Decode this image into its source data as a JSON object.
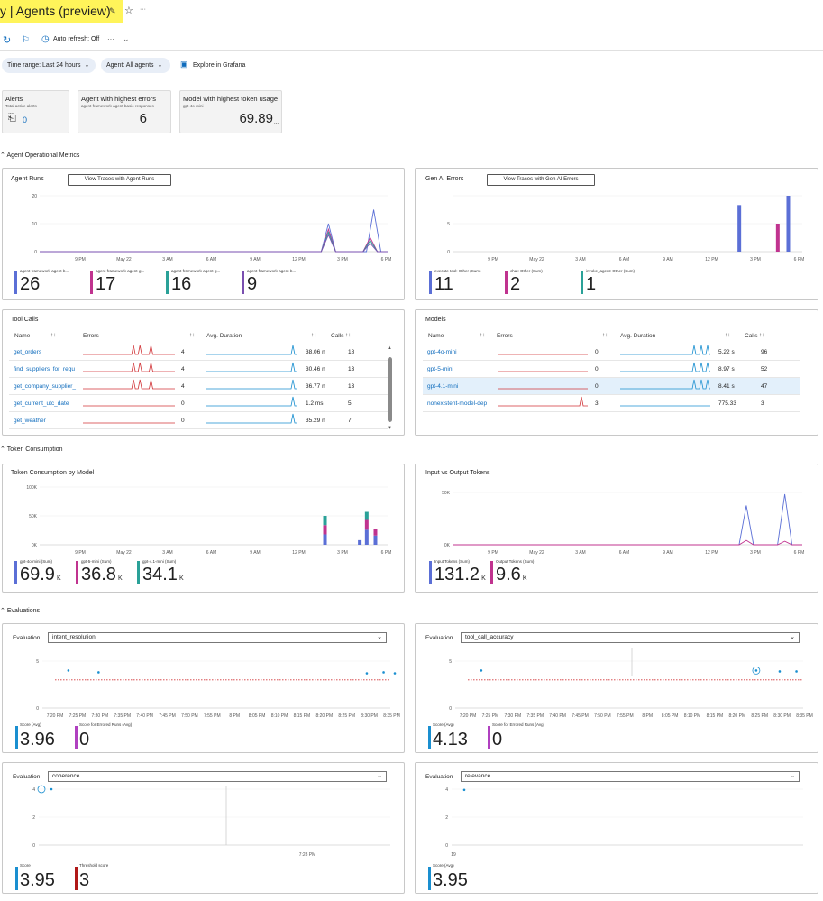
{
  "title": "y | Agents (preview)",
  "toolbar": {
    "auto_refresh": "Auto refresh: Off",
    "more": "···"
  },
  "filters": {
    "time_range": "Time range: Last 24 hours",
    "agent": "Agent: All agents",
    "grafana": "Explore in Grafana"
  },
  "tiles": {
    "alerts": {
      "title": "Alerts",
      "subtitle": "Total active alerts",
      "value": "0"
    },
    "errors": {
      "title": "Agent with highest errors",
      "subtitle": "agent-framework-agent-basic-responses",
      "value": "6"
    },
    "tokens": {
      "title": "Model with highest token usage",
      "subtitle": "gpt-4o-mini",
      "value": "69.89",
      "suffix": "..."
    }
  },
  "sections": {
    "operational": "Agent Operational Metrics",
    "token": "Token Consumption",
    "evaluations": "Evaluations"
  },
  "time_axis": [
    "9 PM",
    "May 22",
    "3 AM",
    "6 AM",
    "9 AM",
    "12 PM",
    "3 PM",
    "6 PM"
  ],
  "agent_runs": {
    "title": "Agent Runs",
    "button": "View Traces with Agent Runs",
    "chart_data": {
      "type": "line",
      "x": [
        "9 PM",
        "May 22",
        "3 AM",
        "6 AM",
        "9 AM",
        "12 PM",
        "3 PM",
        "6 PM"
      ],
      "ylim": [
        0,
        20
      ],
      "yticks": [
        "20",
        "10",
        "0"
      ],
      "series": [
        {
          "name": "agent-framework-agent-b...",
          "color": "#5b6fd6",
          "peaks": [
            [
              0.83,
              10
            ],
            [
              0.96,
              15
            ]
          ]
        },
        {
          "name": "agent-framework-agent-g...",
          "color": "#c0338f",
          "peaks": [
            [
              0.83,
              8
            ],
            [
              0.95,
              5
            ]
          ]
        },
        {
          "name": "agent-framework-agent-g...",
          "color": "#2aa198",
          "peaks": [
            [
              0.83,
              7
            ],
            [
              0.95,
              4
            ]
          ]
        },
        {
          "name": "agent-framework-agent-b...",
          "color": "#7a4fb0",
          "peaks": [
            [
              0.83,
              6
            ],
            [
              0.95,
              3
            ]
          ]
        }
      ]
    },
    "legend": [
      {
        "label": "agent-framework-agent-b...",
        "value": "26",
        "color": "#5b6fd6"
      },
      {
        "label": "agent-framework-agent-g...",
        "value": "17",
        "color": "#c0338f"
      },
      {
        "label": "agent-framework-agent-g...",
        "value": "16",
        "color": "#2aa198"
      },
      {
        "label": "agent-framework-agent-b...",
        "value": "9",
        "color": "#7a4fb0"
      }
    ]
  },
  "gen_ai_errors": {
    "title": "Gen AI Errors",
    "button": "View Traces with Gen AI Errors",
    "chart_data": {
      "type": "bar",
      "x": [
        "9 PM",
        "May 22",
        "3 AM",
        "6 AM",
        "9 AM",
        "12 PM",
        "3 PM",
        "6 PM"
      ],
      "ylim": [
        0,
        6
      ],
      "yticks": [
        "5",
        "0"
      ],
      "bars": [
        {
          "pos": 0.82,
          "value": 5,
          "color": "#5b6fd6"
        },
        {
          "pos": 0.93,
          "value": 3,
          "color": "#c0338f"
        },
        {
          "pos": 0.96,
          "value": 6,
          "color": "#5b6fd6"
        }
      ]
    },
    "legend": [
      {
        "label": "execute tool: Other (Sum)",
        "value": "11",
        "color": "#5b6fd6"
      },
      {
        "label": "chat: Other (Sum)",
        "value": "2",
        "color": "#c0338f"
      },
      {
        "label": "invoke_agent: Other (Sum)",
        "value": "1",
        "color": "#2aa198"
      }
    ]
  },
  "tool_calls": {
    "title": "Tool Calls",
    "headers": {
      "name": "Name",
      "errors": "Errors",
      "duration": "Avg. Duration",
      "calls": "Calls"
    },
    "rows": [
      {
        "name": "get_orders",
        "errors": "4",
        "duration": "38.06 n",
        "calls": "18",
        "err_spikes": true
      },
      {
        "name": "find_suppliers_for_requ",
        "errors": "4",
        "duration": "30.46 n",
        "calls": "13",
        "err_spikes": true
      },
      {
        "name": "get_company_supplier_",
        "errors": "4",
        "duration": "36.77 n",
        "calls": "13",
        "err_spikes": true
      },
      {
        "name": "get_current_utc_date",
        "errors": "0",
        "duration": "1.2 ms",
        "calls": "5",
        "err_spikes": false
      },
      {
        "name": "get_weather",
        "errors": "0",
        "duration": "35.29 n",
        "calls": "7",
        "err_spikes": false
      }
    ]
  },
  "models": {
    "title": "Models",
    "headers": {
      "name": "Name",
      "errors": "Errors",
      "duration": "Avg. Duration",
      "calls": "Calls"
    },
    "rows": [
      {
        "name": "gpt-4o-mini",
        "errors": "0",
        "duration": "5.22 s",
        "calls": "96",
        "err_spike": false
      },
      {
        "name": "gpt-5-mini",
        "errors": "0",
        "duration": "8.97 s",
        "calls": "52",
        "err_spike": false
      },
      {
        "name": "gpt-4.1-mini",
        "errors": "0",
        "duration": "8.41 s",
        "calls": "47",
        "err_spike": false
      },
      {
        "name": "nonexistent-model-dep",
        "errors": "3",
        "duration": "775.33",
        "calls": "3",
        "err_spike": true
      }
    ]
  },
  "token_by_model": {
    "title": "Token Consumption by Model",
    "chart_data": {
      "type": "bar",
      "x": [
        "9 PM",
        "May 22",
        "3 AM",
        "6 AM",
        "9 AM",
        "12 PM",
        "3 PM",
        "6 PM"
      ],
      "ylim": [
        0,
        100000
      ],
      "yticks": [
        "100K",
        "50K",
        "0K"
      ],
      "stacks": [
        {
          "pos": 0.82,
          "values": [
            18000,
            16000,
            16000
          ]
        },
        {
          "pos": 0.92,
          "values": [
            8000,
            0,
            0
          ]
        },
        {
          "pos": 0.94,
          "values": [
            26000,
            17000,
            14000
          ]
        },
        {
          "pos": 0.965,
          "values": [
            16000,
            12000,
            0
          ]
        }
      ],
      "colors": [
        "#5b6fd6",
        "#c0338f",
        "#2aa198"
      ]
    },
    "legend": [
      {
        "label": "gpt-4o-mini (Sum)",
        "value": "69.9",
        "unit": "K",
        "color": "#5b6fd6"
      },
      {
        "label": "gpt-5-mini (Sum)",
        "value": "36.8",
        "unit": "K",
        "color": "#c0338f"
      },
      {
        "label": "gpt-4.1-mini (Sum)",
        "value": "34.1",
        "unit": "K",
        "color": "#2aa198"
      }
    ]
  },
  "io_tokens": {
    "title": "Input vs Output Tokens",
    "chart_data": {
      "type": "line",
      "x": [
        "9 PM",
        "May 22",
        "3 AM",
        "6 AM",
        "9 AM",
        "12 PM",
        "3 PM",
        "6 PM"
      ],
      "ylim": [
        0,
        60000
      ],
      "yticks": [
        "50K",
        "0K"
      ],
      "series": [
        {
          "name": "Input Tokens (Sum)",
          "color": "#5b6fd6",
          "peaks": [
            [
              0.84,
              45000
            ],
            [
              0.95,
              58000
            ]
          ]
        },
        {
          "name": "Output Tokens (Sum)",
          "color": "#c0338f",
          "peaks": [
            [
              0.84,
              5000
            ],
            [
              0.95,
              4000
            ]
          ]
        }
      ]
    },
    "legend": [
      {
        "label": "Input Tokens (Sum)",
        "value": "131.2",
        "unit": "K",
        "color": "#5b6fd6"
      },
      {
        "label": "Output Tokens (Sum)",
        "value": "9.6",
        "unit": "K",
        "color": "#c0338f"
      }
    ]
  },
  "evaluations": {
    "label": "Evaluation",
    "time_axis": [
      "7:20 PM",
      "7:25 PM",
      "7:30 PM",
      "7:35 PM",
      "7:40 PM",
      "7:45 PM",
      "7:50 PM",
      "7:55 PM",
      "8 PM",
      "8:05 PM",
      "8:10 PM",
      "8:15 PM",
      "8:20 PM",
      "8:25 PM",
      "8:30 PM",
      "8:35 PM"
    ],
    "panels": [
      {
        "select": "intent_resolution",
        "chart_data": {
          "type": "scatter",
          "ylim": [
            0,
            5
          ],
          "yticks": [
            "5",
            "0"
          ],
          "threshold": 3,
          "points": [
            [
              0.04,
              4.0
            ],
            [
              0.13,
              3.8
            ],
            [
              0.93,
              3.7
            ],
            [
              0.98,
              3.8
            ],
            [
              1.02,
              3.7
            ]
          ]
        },
        "legend": [
          {
            "label": "Score (Avg)",
            "value": "3.96",
            "color": "#1a8fd0"
          },
          {
            "label": "Score for Errored Runs (Avg)",
            "value": "0",
            "color": "#b040c0"
          }
        ]
      },
      {
        "select": "tool_call_accuracy",
        "chart_data": {
          "type": "scatter",
          "ylim": [
            0,
            5
          ],
          "yticks": [
            "5",
            "0"
          ],
          "threshold": 3,
          "points": [
            [
              0.04,
              4.0
            ],
            [
              0.86,
              4.0
            ],
            [
              0.93,
              3.9
            ],
            [
              0.98,
              3.9
            ]
          ]
        },
        "legend": [
          {
            "label": "Score (Avg)",
            "value": "4.13",
            "color": "#1a8fd0"
          },
          {
            "label": "Score for Errored Runs (Avg)",
            "value": "0",
            "color": "#b040c0"
          }
        ]
      },
      {
        "select": "coherence",
        "time_axis": [
          "7:28 PM"
        ],
        "chart_data": {
          "type": "scatter",
          "ylim": [
            0,
            4
          ],
          "yticks": [
            "4",
            "2",
            "0"
          ],
          "points": [
            [
              0.0,
              4.0
            ]
          ]
        },
        "legend": [
          {
            "label": "Score",
            "value": "3.95",
            "color": "#1a8fd0"
          },
          {
            "label": "Threshold score",
            "value": "3",
            "color": "#b01818"
          }
        ]
      },
      {
        "select": "relevance",
        "time_axis": [
          "19"
        ],
        "chart_data": {
          "type": "scatter",
          "ylim": [
            0,
            4
          ],
          "yticks": [
            "4",
            "2",
            "0"
          ],
          "points": [
            [
              0.0,
              3.95
            ]
          ]
        },
        "legend": [
          {
            "label": "Score (Avg)",
            "value": "3.95",
            "color": "#1a8fd0"
          }
        ]
      }
    ]
  }
}
